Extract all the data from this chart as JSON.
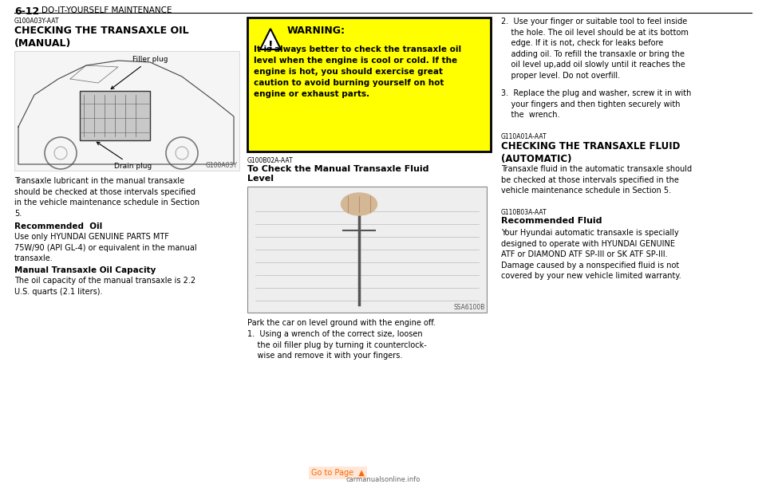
{
  "page_header": "6-12",
  "page_header_sub": "DO-IT-YOURSELF MAINTENANCE",
  "bg_color": "#ffffff",
  "header_line_color": "#000000",
  "col1_tag": "G100A03Y-AAT",
  "col1_title": "CHECKING THE TRANSAXLE OIL\n(MANUAL)",
  "col1_filler_plug_label": "Filler plug",
  "col1_drain_plug_label": "Drain plug",
  "col1_img_tag": "G100A03Y",
  "col1_body1": "Transaxle lubricant in the manual transaxle\nshould be checked at those intervals specified\nin the vehicle maintenance schedule in Section\n5.",
  "col1_subtitle2": "Recommended  Oil",
  "col1_body2": "Use only HYUNDAI GENUINE PARTS MTF\n75W/90 (API GL-4) or equivalent in the manual\ntransaxle.",
  "col1_subtitle3": "Manual Transaxle Oil Capacity",
  "col1_body3": "The oil capacity of the manual transaxle is 2.2\nU.S. quarts (2.1 liters).",
  "warning_title": "WARNING:",
  "warning_body": "It is always better to check the transaxle oil\nlevel when the engine is cool or cold. If the\nengine is hot, you should exercise great\ncaution to avoid burning yourself on hot\nengine or exhaust parts.",
  "warning_bg": "#ffff00",
  "warning_border": "#000000",
  "col2_right_item2": "2.  Use your finger or suitable tool to feel inside\n    the hole. The oil level should be at its bottom\n    edge. If it is not, check for leaks before\n    adding oil. To refill the transaxle or bring the\n    oil level up,add oil slowly until it reaches the\n    proper level. Do not overfill.",
  "col2_right_item3": "3.  Replace the plug and washer, screw it in with\n    your fingers and then tighten securely with\n    the  wrench.",
  "col2_tag": "G100B02A-AAT",
  "col2_title": "To Check the Manual Transaxle Fluid\nLevel",
  "col2_img_tag": "SSA6100B",
  "col2_body": "Park the car on level ground with the engine off.",
  "col2_step1": "1.  Using a wrench of the correct size, loosen\n    the oil filler plug by turning it counterclock-\n    wise and remove it with your fingers.",
  "col3_tag1": "G110A01A-AAT",
  "col3_title1": "CHECKING THE TRANSAXLE FLUID\n(AUTOMATIC)",
  "col3_body1": "Transaxle fluid in the automatic transaxle should\nbe checked at those intervals specified in the\nvehicle maintenance schedule in Section 5.",
  "col3_tag2": "G110B03A-AAT",
  "col3_title2": "Recommended Fluid",
  "col3_body2": "Your Hyundai automatic transaxle is specially\ndesigned to operate with HYUNDAI GENUINE\nATF or DIAMOND ATF SP-III or SK ATF SP-III.\nDamage caused by a nonspecified fluid is not\ncovered by your new vehicle limited warranty.",
  "footer_text": "carmanualsonline.info",
  "footer_highlight": "#ff6600"
}
